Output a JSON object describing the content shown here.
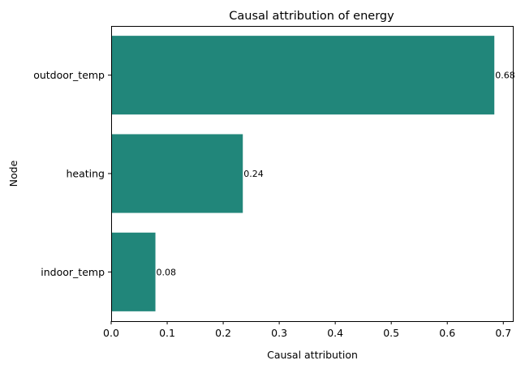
{
  "chart_data": {
    "type": "bar",
    "orientation": "horizontal",
    "title": "Causal attribution of energy",
    "xlabel": "Causal attribution",
    "ylabel": "Node",
    "categories": [
      "outdoor_temp",
      "heating",
      "indoor_temp"
    ],
    "values": [
      0.684,
      0.235,
      0.079
    ],
    "value_labels": [
      "0.68",
      "0.24",
      "0.08"
    ],
    "xlim": [
      0,
      0.717
    ],
    "xticks": [
      0.0,
      0.1,
      0.2,
      0.3,
      0.4,
      0.5,
      0.6,
      0.7
    ],
    "xtick_labels": [
      "0.0",
      "0.1",
      "0.2",
      "0.3",
      "0.4",
      "0.5",
      "0.6",
      "0.7"
    ],
    "grid": false,
    "legend": "none",
    "colors": {
      "bar": "#21867a",
      "axis": "#000000",
      "background": "#ffffff"
    }
  }
}
